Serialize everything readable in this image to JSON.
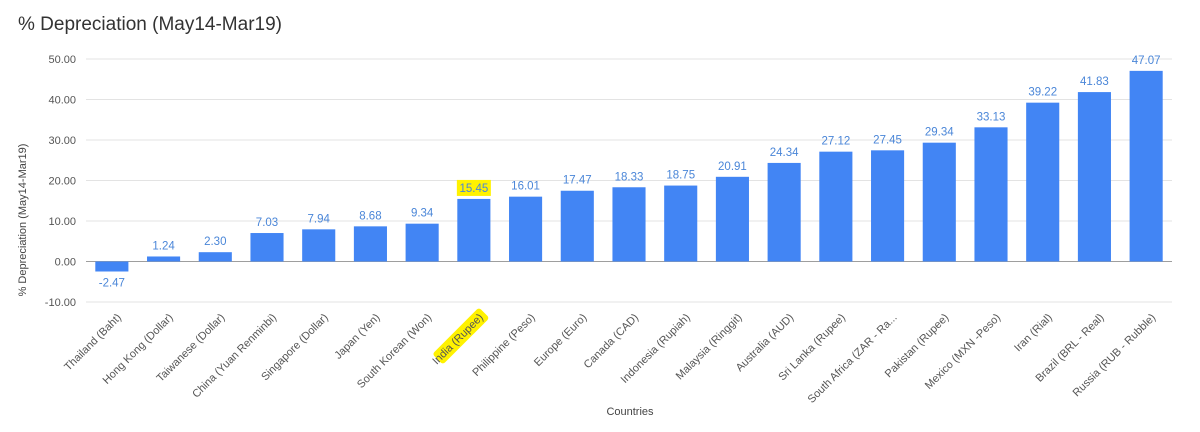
{
  "chart_data": {
    "type": "bar",
    "title": "% Depreciation (May14-Mar19)",
    "xlabel": "Countries",
    "ylabel": "% Depreciation (May14-Mar19)",
    "ylim": [
      -10,
      50
    ],
    "yticks": [
      -10,
      0,
      10,
      20,
      30,
      40,
      50
    ],
    "ytick_labels": [
      "-10.00",
      "0.00",
      "10.00",
      "20.00",
      "30.00",
      "40.00",
      "50.00"
    ],
    "grid": true,
    "legend": "none",
    "bar_color": "#4285f4",
    "label_color": "#4a86d8",
    "highlight_color": "#fff200",
    "highlighted_category": "India (Rupee)",
    "categories": [
      "Thailand (Baht)",
      "Hong Kong (Dollar)",
      "Taiwanese (Dollar)",
      "China (Yuan Renminbi)",
      "Singapore (Dollar)",
      "Japan (Yen)",
      "South Korean (Won)",
      "India (Rupee)",
      "Philippine (Peso)",
      "Europe (Euro)",
      "Canada (CAD)",
      "Indonesia (Rupiah)",
      "Malaysia (Ringgit)",
      "Australia (AUD)",
      "Sri Lanka (Rupee)",
      "South Africa (ZAR - Ra...",
      "Pakistan (Rupee)",
      "Mexico (MXN -Peso)",
      "Iran (Rial)",
      "Brazil (BRL - Real)",
      "Russia (RUB - Rubble)"
    ],
    "values": [
      -2.47,
      1.24,
      2.3,
      7.03,
      7.94,
      8.68,
      9.34,
      15.45,
      16.01,
      17.47,
      18.33,
      18.75,
      20.91,
      24.34,
      27.12,
      27.45,
      29.34,
      33.13,
      39.22,
      41.83,
      47.07
    ],
    "value_labels": [
      "-2.47",
      "1.24",
      "2.30",
      "7.03",
      "7.94",
      "8.68",
      "9.34",
      "15.45",
      "16.01",
      "17.47",
      "18.33",
      "18.75",
      "20.91",
      "24.34",
      "27.12",
      "27.45",
      "29.34",
      "33.13",
      "39.22",
      "41.83",
      "47.07"
    ]
  }
}
